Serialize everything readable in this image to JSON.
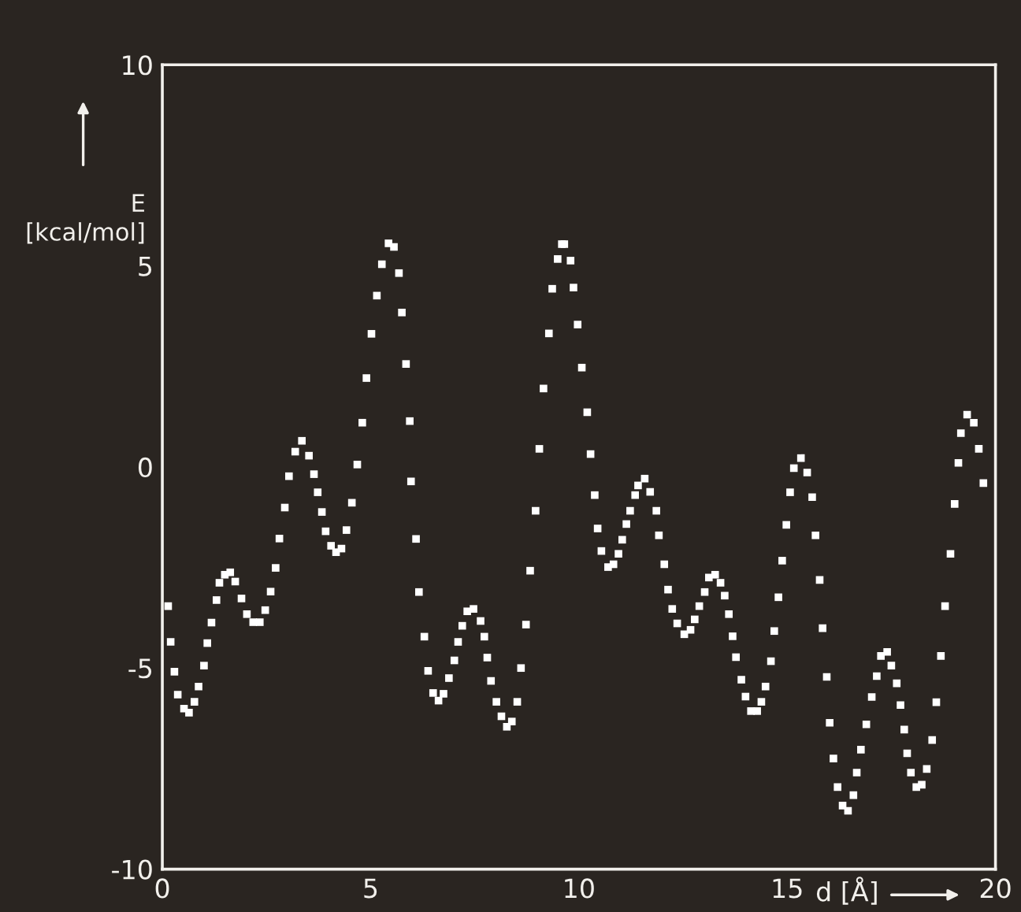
{
  "chart_data": {
    "type": "scatter",
    "xlabel": "d [Å]",
    "ylabel": "E\n[kcal/mol]",
    "xlim": [
      0,
      20
    ],
    "ylim": [
      -10,
      10
    ],
    "xticks": [
      0,
      5,
      10,
      15,
      20
    ],
    "yticks": [
      -10,
      -5,
      0,
      5,
      10
    ],
    "grid": false,
    "marker": "square",
    "series": [
      {
        "color": "#ffffff",
        "x": [
          0.14,
          0.2,
          0.29,
          0.37,
          0.52,
          0.64,
          0.77,
          0.87,
          1.0,
          1.08,
          1.18,
          1.3,
          1.37,
          1.5,
          1.63,
          1.75,
          1.9,
          2.03,
          2.18,
          2.34,
          2.47,
          2.6,
          2.72,
          2.81,
          2.94,
          3.04,
          3.19,
          3.35,
          3.52,
          3.64,
          3.73,
          3.83,
          3.92,
          4.05,
          4.17,
          4.3,
          4.42,
          4.55,
          4.68,
          4.8,
          4.9,
          5.02,
          5.15,
          5.27,
          5.43,
          5.56,
          5.68,
          5.75,
          5.85,
          5.94,
          5.97,
          6.09,
          6.16,
          6.29,
          6.38,
          6.5,
          6.63,
          6.75,
          6.88,
          7.01,
          7.1,
          7.2,
          7.32,
          7.47,
          7.64,
          7.73,
          7.8,
          7.89,
          8.02,
          8.14,
          8.27,
          8.39,
          8.52,
          8.61,
          8.73,
          8.83,
          8.96,
          9.05,
          9.15,
          9.28,
          9.36,
          9.49,
          9.59,
          9.65,
          9.8,
          9.87,
          9.97,
          10.07,
          10.2,
          10.28,
          10.38,
          10.45,
          10.54,
          10.7,
          10.83,
          10.95,
          11.04,
          11.14,
          11.23,
          11.35,
          11.42,
          11.58,
          11.71,
          11.86,
          11.92,
          12.05,
          12.14,
          12.24,
          12.36,
          12.53,
          12.68,
          12.78,
          12.89,
          13.02,
          13.12,
          13.27,
          13.4,
          13.5,
          13.6,
          13.69,
          13.77,
          13.9,
          14.0,
          14.13,
          14.28,
          14.38,
          14.48,
          14.61,
          14.69,
          14.79,
          14.88,
          14.98,
          15.07,
          15.16,
          15.33,
          15.48,
          15.6,
          15.68,
          15.78,
          15.85,
          15.95,
          16.02,
          16.11,
          16.21,
          16.33,
          16.46,
          16.59,
          16.67,
          16.77,
          16.9,
          17.03,
          17.15,
          17.25,
          17.4,
          17.5,
          17.63,
          17.72,
          17.81,
          17.88,
          17.97,
          18.1,
          18.23,
          18.35,
          18.48,
          18.58,
          18.69,
          18.79,
          18.92,
          19.02,
          19.11,
          19.17,
          19.32,
          19.48,
          19.6,
          19.71
        ],
        "values": [
          -3.46,
          -4.35,
          -5.09,
          -5.66,
          -6.01,
          -6.11,
          -5.84,
          -5.46,
          -4.94,
          -4.38,
          -3.87,
          -3.31,
          -2.88,
          -2.68,
          -2.62,
          -2.85,
          -3.27,
          -3.66,
          -3.86,
          -3.86,
          -3.56,
          -3.1,
          -2.51,
          -1.78,
          -1.01,
          -0.23,
          0.38,
          0.65,
          0.28,
          -0.18,
          -0.63,
          -1.12,
          -1.6,
          -1.96,
          -2.12,
          -2.03,
          -1.57,
          -0.89,
          0.06,
          1.1,
          2.21,
          3.31,
          4.26,
          5.04,
          5.56,
          5.47,
          4.82,
          3.84,
          2.56,
          1.14,
          -0.36,
          -1.79,
          -3.11,
          -4.22,
          -5.07,
          -5.62,
          -5.81,
          -5.64,
          -5.25,
          -4.81,
          -4.35,
          -3.95,
          -3.59,
          -3.53,
          -3.83,
          -4.22,
          -4.74,
          -5.32,
          -5.84,
          -6.2,
          -6.46,
          -6.33,
          -5.84,
          -5.0,
          -3.92,
          -2.58,
          -1.09,
          0.45,
          1.95,
          3.32,
          4.43,
          5.17,
          5.54,
          5.54,
          5.13,
          4.46,
          3.54,
          2.47,
          1.36,
          0.32,
          -0.7,
          -1.53,
          -2.09,
          -2.49,
          -2.42,
          -2.16,
          -1.81,
          -1.42,
          -1.09,
          -0.7,
          -0.46,
          -0.29,
          -0.62,
          -1.09,
          -1.7,
          -2.42,
          -3.05,
          -3.53,
          -3.89,
          -4.16,
          -4.05,
          -3.79,
          -3.46,
          -3.11,
          -2.75,
          -2.68,
          -2.88,
          -3.2,
          -3.66,
          -4.21,
          -4.73,
          -5.29,
          -5.71,
          -6.07,
          -6.07,
          -5.84,
          -5.46,
          -4.83,
          -4.08,
          -3.24,
          -2.33,
          -1.44,
          -0.63,
          -0.03,
          0.22,
          -0.14,
          -0.75,
          -1.7,
          -2.81,
          -4.01,
          -5.22,
          -6.36,
          -7.25,
          -7.96,
          -8.42,
          -8.55,
          -8.16,
          -7.6,
          -7.03,
          -6.4,
          -5.72,
          -5.2,
          -4.7,
          -4.6,
          -4.94,
          -5.38,
          -5.92,
          -6.53,
          -7.12,
          -7.6,
          -7.96,
          -7.9,
          -7.51,
          -6.79,
          -5.85,
          -4.7,
          -3.46,
          -2.16,
          -0.92,
          0.1,
          0.84,
          1.3,
          1.1,
          0.45,
          -0.4
        ]
      }
    ]
  }
}
